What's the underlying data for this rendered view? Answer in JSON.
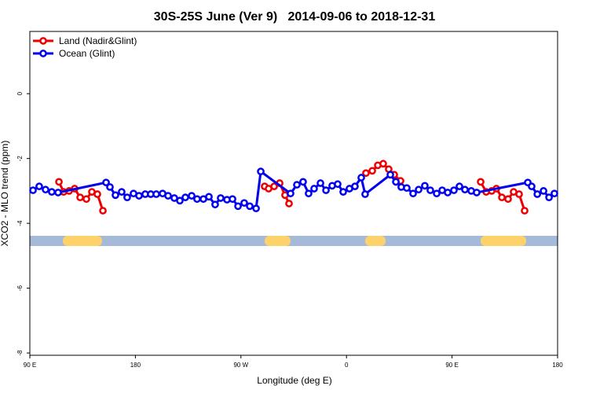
{
  "chart_data": {
    "type": "line",
    "title": "30S-25S June (Ver 9)   2014-09-06 to 2018-12-31",
    "x_label": "Longitude (deg E)",
    "y_label": "XCO2 - MLO trend (ppm)",
    "xlim": [
      90,
      540
    ],
    "xticks": [
      {
        "value": 90,
        "label": "90 E"
      },
      {
        "value": 180,
        "label": "180"
      },
      {
        "value": 270,
        "label": "90 W"
      },
      {
        "value": 360,
        "label": "0"
      },
      {
        "value": 450,
        "label": "90 E"
      },
      {
        "value": 540,
        "label": "180"
      }
    ],
    "ylim": [
      -8.07,
      1.92
    ],
    "yticks": [
      0,
      -2,
      -4,
      -6,
      -8
    ],
    "legend": "top-left",
    "series": [
      {
        "name": "Land (Nadir&Glint)",
        "color": "#ee0000",
        "x": [
          114.8,
          118.8,
          123.5,
          128.2,
          132.9,
          138.2,
          142.9,
          147.6,
          152.3,
          250,
          290.2,
          293.6,
          298.3,
          303.0,
          307.6,
          311.0,
          350,
          376.6,
          382.0,
          386.7,
          391.3,
          396.0,
          400.7,
          406.1,
          440,
          474.4,
          479.1,
          483.8,
          487.8,
          492.5,
          497.8,
          502.5,
          507.2,
          511.9
        ],
        "values": [
          -2.72,
          -3.03,
          -3.0,
          -2.93,
          -3.2,
          -3.25,
          -3.03,
          -3.1,
          -3.61,
          null,
          -2.86,
          -2.93,
          -2.86,
          -2.76,
          -3.13,
          -3.39,
          null,
          -2.45,
          -2.38,
          -2.21,
          -2.16,
          -2.33,
          -2.5,
          -2.69,
          null,
          -2.72,
          -3.03,
          -3.0,
          -2.93,
          -3.2,
          -3.25,
          -3.03,
          -3.1,
          -3.61
        ]
      },
      {
        "name": "Ocean (Glint)",
        "color": "#0000ee",
        "x": [
          92.7,
          98.0,
          103.4,
          108.7,
          114.1,
          155.0,
          158.3,
          163.0,
          168.3,
          173.0,
          178.4,
          183.1,
          188.4,
          193.1,
          197.8,
          203.2,
          207.9,
          213.2,
          217.9,
          222.6,
          228.0,
          232.6,
          238.0,
          242.7,
          248.0,
          252.7,
          258.1,
          262.8,
          267.5,
          272.8,
          277.5,
          282.9,
          286.9,
          312.3,
          317.7,
          323.0,
          327.7,
          332.4,
          337.8,
          342.5,
          347.8,
          352.5,
          357.2,
          362.5,
          367.2,
          372.6,
          375.9,
          397.4,
          402.1,
          406.7,
          411.4,
          416.8,
          421.5,
          426.8,
          431.5,
          436.9,
          441.6,
          446.3,
          451.6,
          456.3,
          461.0,
          466.4,
          471.0,
          514.6,
          517.9,
          522.7,
          528.0,
          532.7,
          537.3
        ],
        "values": [
          -2.98,
          -2.86,
          -2.96,
          -3.03,
          -3.05,
          -2.74,
          -2.88,
          -3.13,
          -3.03,
          -3.2,
          -3.08,
          -3.15,
          -3.1,
          -3.1,
          -3.1,
          -3.08,
          -3.15,
          -3.22,
          -3.3,
          -3.2,
          -3.15,
          -3.25,
          -3.25,
          -3.18,
          -3.42,
          -3.22,
          -3.27,
          -3.25,
          -3.47,
          -3.37,
          -3.47,
          -3.54,
          -2.4,
          -3.08,
          -2.81,
          -2.72,
          -3.08,
          -2.93,
          -2.76,
          -2.98,
          -2.84,
          -2.79,
          -3.03,
          -2.93,
          -2.86,
          -2.59,
          -3.1,
          -2.5,
          -2.72,
          -2.88,
          -2.91,
          -3.08,
          -2.96,
          -2.84,
          -2.98,
          -3.08,
          -2.98,
          -3.05,
          -2.98,
          -2.86,
          -2.96,
          -3.0,
          -3.05,
          -2.74,
          -2.86,
          -3.1,
          -3.0,
          -3.2,
          -3.08
        ]
      }
    ]
  }
}
